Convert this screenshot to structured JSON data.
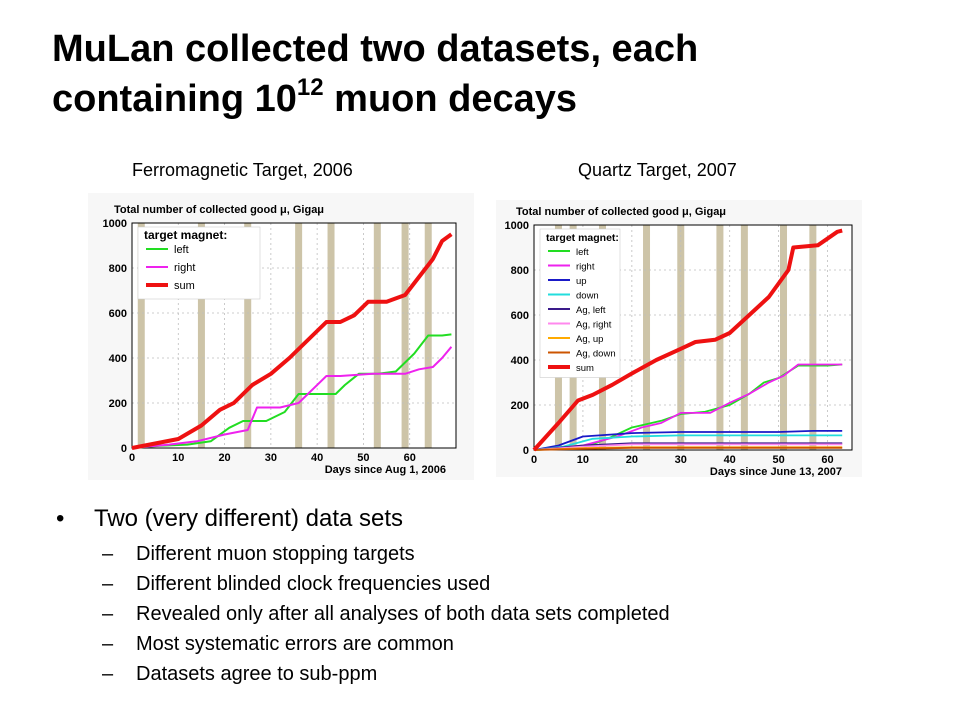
{
  "slide": {
    "title_line1": "MuLan collected two datasets, each",
    "title_line2_pre": "containing 10",
    "title_line2_sup": "12",
    "title_line2_post": " muon decays"
  },
  "captions": {
    "left": "Ferromagnetic Target, 2006",
    "right": "Quartz Target, 2007"
  },
  "bullets": {
    "main": "Two (very different) data sets",
    "subs": [
      "Different muon stopping targets",
      "Different blinded clock frequencies used",
      "Revealed only after all analyses of both data sets completed",
      "Most systematic errors are common",
      "Datasets agree to sub-ppm"
    ]
  },
  "colors": {
    "green": "#22dd22",
    "magenta": "#ee22ee",
    "red": "#ee1111",
    "blue": "#1a1ac8",
    "cyan": "#22dddd",
    "navy": "#3a1a8a",
    "pink": "#ff88ee",
    "orange": "#ffaa00",
    "brown": "#cc5500",
    "band": "#cdc4a8"
  },
  "chart_data": [
    {
      "type": "line",
      "title": "Total number of collected good μ, Gigaμ",
      "xlabel": "Days since Aug 1, 2006",
      "ylabel": "",
      "xlim": [
        0,
        70
      ],
      "ylim": [
        0,
        1000
      ],
      "xticks": [
        "0",
        "10",
        "20",
        "30",
        "40",
        "50",
        "60"
      ],
      "yticks": [
        "0",
        "200",
        "400",
        "600",
        "800",
        "1000"
      ],
      "legend_title": "target magnet:",
      "legend_position": "top-left",
      "grid": true,
      "bands_x": [
        2,
        15,
        25,
        36,
        43,
        53,
        59,
        64
      ],
      "series": [
        {
          "name": "left",
          "color": "#22dd22",
          "x": [
            0,
            6,
            12,
            17,
            21,
            24,
            29,
            33,
            36,
            40,
            44,
            46,
            49,
            53,
            57,
            61,
            64,
            67,
            69
          ],
          "y": [
            0,
            10,
            15,
            30,
            90,
            120,
            120,
            160,
            240,
            240,
            240,
            280,
            330,
            330,
            340,
            420,
            500,
            500,
            505
          ]
        },
        {
          "name": "right",
          "color": "#ee22ee",
          "x": [
            0,
            8,
            14,
            20,
            25,
            27,
            32,
            36,
            42,
            45,
            52,
            59,
            62,
            65,
            67,
            69
          ],
          "y": [
            0,
            15,
            30,
            60,
            80,
            180,
            180,
            200,
            320,
            320,
            330,
            330,
            350,
            360,
            400,
            450
          ]
        },
        {
          "name": "sum",
          "color": "#ee1111",
          "x": [
            0,
            5,
            10,
            15,
            19,
            22,
            26,
            30,
            34,
            38,
            42,
            45,
            48,
            51,
            55,
            59,
            62,
            65,
            67,
            69
          ],
          "y": [
            0,
            20,
            40,
            100,
            170,
            200,
            280,
            330,
            400,
            480,
            560,
            560,
            590,
            650,
            650,
            680,
            760,
            840,
            920,
            950
          ]
        }
      ]
    },
    {
      "type": "line",
      "title": "Total number of collected good μ, Gigaμ",
      "xlabel": "Days since June 13, 2007",
      "ylabel": "",
      "xlim": [
        0,
        65
      ],
      "ylim": [
        0,
        1000
      ],
      "xticks": [
        "0",
        "10",
        "20",
        "30",
        "40",
        "50",
        "60"
      ],
      "yticks": [
        "0",
        "200",
        "400",
        "600",
        "800",
        "1000"
      ],
      "legend_title": "target magnet:",
      "legend_position": "top-left",
      "grid": true,
      "bands_x": [
        5,
        8,
        14,
        23,
        30,
        38,
        43,
        51,
        57
      ],
      "series": [
        {
          "name": "left",
          "color": "#22dd22",
          "x": [
            0,
            10,
            15,
            20,
            26,
            30,
            35,
            40,
            44,
            47,
            50,
            54,
            60,
            63
          ],
          "y": [
            0,
            10,
            50,
            100,
            130,
            160,
            170,
            200,
            250,
            300,
            320,
            375,
            375,
            380
          ]
        },
        {
          "name": "right",
          "color": "#ee22ee",
          "x": [
            0,
            10,
            17,
            22,
            26,
            30,
            36,
            40,
            44,
            48,
            51,
            54,
            63
          ],
          "y": [
            0,
            20,
            60,
            100,
            120,
            165,
            165,
            210,
            250,
            300,
            330,
            380,
            380
          ]
        },
        {
          "name": "up",
          "color": "#1a1ac8",
          "x": [
            0,
            5,
            10,
            20,
            30,
            40,
            50,
            57,
            63
          ],
          "y": [
            0,
            20,
            60,
            75,
            80,
            80,
            80,
            85,
            85
          ]
        },
        {
          "name": "down",
          "color": "#22dddd",
          "x": [
            0,
            6,
            12,
            20,
            30,
            40,
            50,
            63
          ],
          "y": [
            0,
            15,
            50,
            60,
            65,
            65,
            65,
            65
          ]
        },
        {
          "name": "Ag, left",
          "color": "#3a1a8a",
          "x": [
            0,
            10,
            20,
            63
          ],
          "y": [
            0,
            20,
            30,
            30
          ]
        },
        {
          "name": "Ag, right",
          "color": "#ff88ee",
          "x": [
            0,
            10,
            20,
            63
          ],
          "y": [
            0,
            15,
            25,
            25
          ]
        },
        {
          "name": "Ag, up",
          "color": "#ffaa00",
          "x": [
            0,
            10,
            20,
            63
          ],
          "y": [
            0,
            8,
            12,
            12
          ]
        },
        {
          "name": "Ag, down",
          "color": "#cc5500",
          "x": [
            0,
            10,
            20,
            63
          ],
          "y": [
            0,
            5,
            10,
            10
          ]
        },
        {
          "name": "sum",
          "color": "#ee1111",
          "x": [
            0,
            5,
            9,
            12,
            16,
            20,
            25,
            30,
            33,
            37,
            40,
            44,
            48,
            52,
            53,
            58,
            62,
            63
          ],
          "y": [
            0,
            120,
            220,
            245,
            290,
            340,
            400,
            450,
            480,
            490,
            520,
            600,
            680,
            800,
            900,
            910,
            970,
            975
          ]
        }
      ]
    }
  ]
}
